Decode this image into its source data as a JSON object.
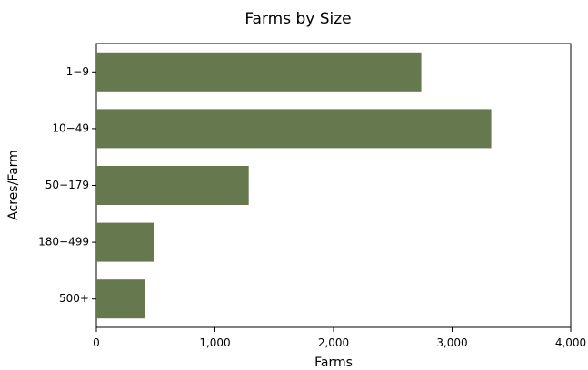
{
  "chart_data": {
    "type": "bar",
    "orientation": "horizontal",
    "title": "Farms by Size",
    "xlabel": "Farms",
    "ylabel": "Acres/Farm",
    "categories": [
      "1−9",
      "10−49",
      "50−179",
      "180−499",
      "500+"
    ],
    "values": [
      2740,
      3330,
      1285,
      485,
      410
    ],
    "xlim": [
      0,
      4000
    ],
    "xticks": [
      0,
      1000,
      2000,
      3000,
      4000
    ],
    "xtick_labels": [
      "0",
      "1,000",
      "2,000",
      "3,000",
      "4,000"
    ],
    "grid": false,
    "bar_color": "#66784e"
  }
}
